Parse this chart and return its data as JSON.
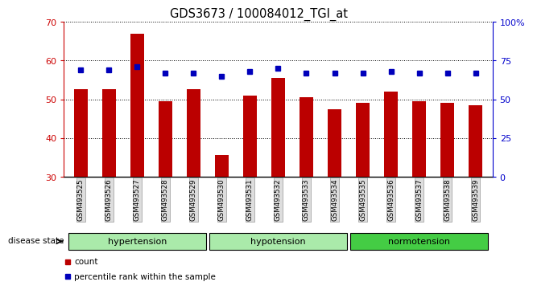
{
  "title": "GDS3673 / 100084012_TGI_at",
  "samples": [
    "GSM493525",
    "GSM493526",
    "GSM493527",
    "GSM493528",
    "GSM493529",
    "GSM493530",
    "GSM493531",
    "GSM493532",
    "GSM493533",
    "GSM493534",
    "GSM493535",
    "GSM493536",
    "GSM493537",
    "GSM493538",
    "GSM493539"
  ],
  "count_values": [
    52.5,
    52.5,
    67.0,
    49.5,
    52.5,
    35.5,
    51.0,
    55.5,
    50.5,
    47.5,
    49.0,
    52.0,
    49.5,
    49.0,
    48.5
  ],
  "percentile_values": [
    69,
    69,
    71,
    67,
    67,
    65,
    68,
    70,
    67,
    67,
    67,
    68,
    67,
    67,
    67
  ],
  "ylim_left": [
    30,
    70
  ],
  "ylim_right": [
    0,
    100
  ],
  "yticks_left": [
    30,
    40,
    50,
    60,
    70
  ],
  "yticks_right": [
    0,
    25,
    50,
    75,
    100
  ],
  "group_hypertension": {
    "label": "hypertension",
    "start": 0,
    "end": 4,
    "color": "#AAEAAA"
  },
  "group_hypotension": {
    "label": "hypotension",
    "start": 5,
    "end": 9,
    "color": "#AAEAAA"
  },
  "group_normotension": {
    "label": "normotension",
    "start": 10,
    "end": 14,
    "color": "#44CC44"
  },
  "bar_color": "#BB0000",
  "dot_color": "#0000BB",
  "axis_left_color": "#CC0000",
  "axis_right_color": "#0000CC",
  "bar_width": 0.5,
  "disease_state_label": "disease state",
  "legend_count": "count",
  "legend_percentile": "percentile rank within the sample"
}
